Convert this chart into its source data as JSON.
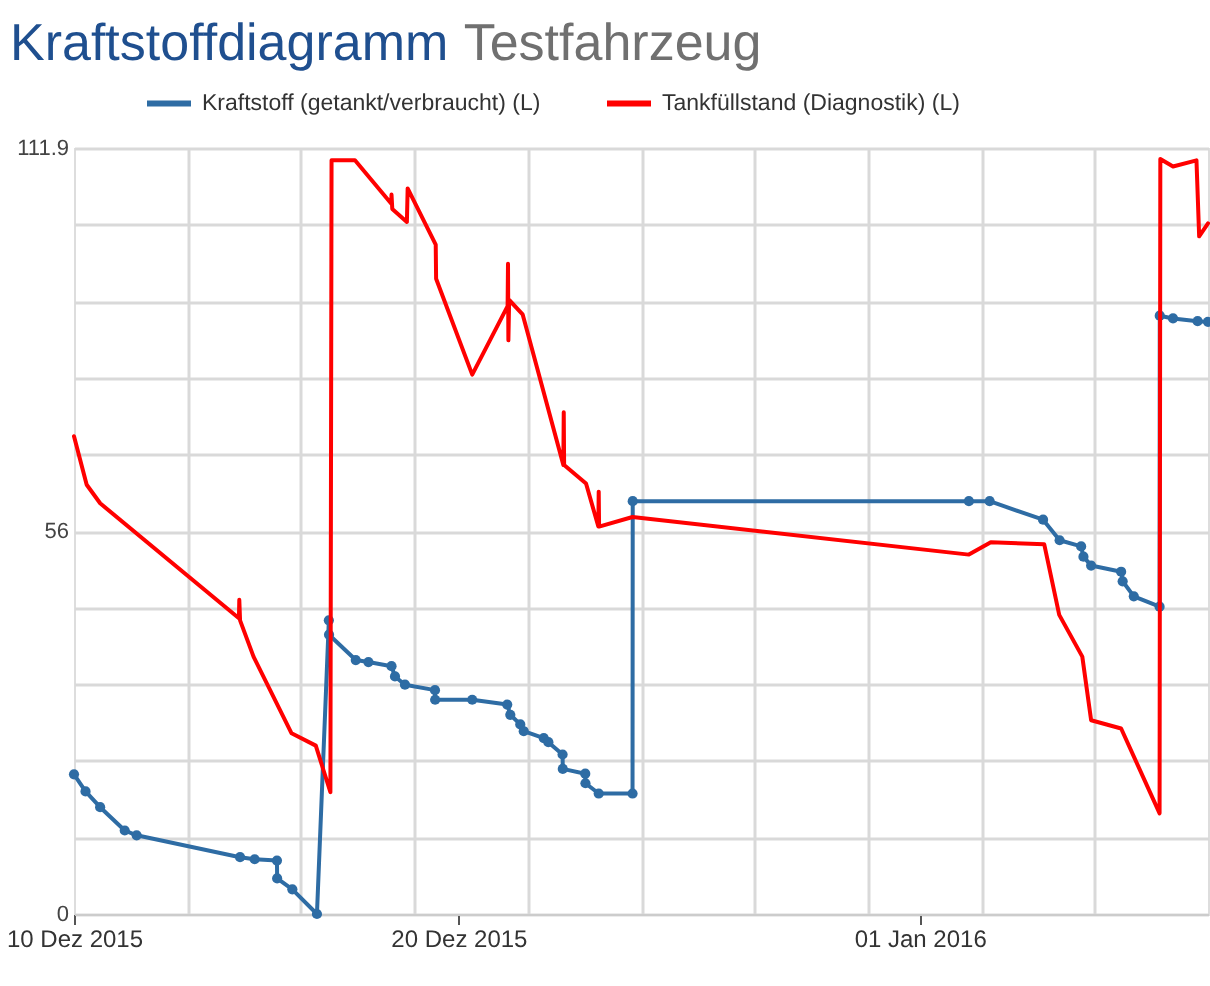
{
  "chart_data": {
    "type": "line",
    "title": "Kraftstoffdiagramm",
    "subtitle": "Testfahrzeug",
    "xlim": [
      "2015-12-10T00:00",
      "2016-01-08T12:00"
    ],
    "ylim": [
      0,
      111.9
    ],
    "xticks": [
      {
        "value": "2015-12-10",
        "label": "10 Dez 2015"
      },
      {
        "value": "2015-12-12T22:48",
        "label": null
      },
      {
        "value": "2015-12-15T21:36",
        "label": null
      },
      {
        "value": "2015-12-18T20:24",
        "label": null
      },
      {
        "value": "2015-12-20",
        "label": "20 Dez 2015"
      },
      {
        "value": "2015-12-21T19:12",
        "label": null
      },
      {
        "value": "2015-12-24T18:00",
        "label": null
      },
      {
        "value": "2015-12-27T16:48",
        "label": null
      },
      {
        "value": "2015-12-30T15:36",
        "label": null
      },
      {
        "value": "2016-01-01",
        "label": "01 Jan 2016"
      },
      {
        "value": "2016-01-02T14:24",
        "label": null
      },
      {
        "value": "2016-01-05T13:12",
        "label": null
      }
    ],
    "yticks": [
      0,
      {
        "value": 11.19,
        "label": null
      },
      {
        "value": 22.38,
        "label": null
      },
      {
        "value": 33.57,
        "label": null
      },
      {
        "value": 44.76,
        "label": null
      },
      {
        "value": 55.95,
        "label": "56"
      },
      {
        "value": 67.14,
        "label": null
      },
      {
        "value": 78.33,
        "label": null
      },
      {
        "value": 89.52,
        "label": null
      },
      {
        "value": 100.71,
        "label": null
      },
      111.9
    ],
    "grid": true,
    "legend": "top",
    "series": [
      {
        "name": "Kraftstoff (getankt/verbraucht) (L)",
        "color": "#2e6ca4",
        "marker": "circle",
        "x": [
          "2015-12-10T00:00",
          "2015-12-10T07:12",
          "2015-12-10T16:19",
          "2015-12-11T07:41",
          "2015-12-11T15:07",
          "2015-12-14T07:41",
          "2015-12-14T16:48",
          "2015-12-15T06:43",
          "2015-12-15T06:50",
          "2015-12-15T16:19",
          "2015-12-16T07:41",
          "2015-12-16T15:07",
          "2015-12-16T15:14",
          "2015-12-17T07:55",
          "2015-12-17T15:50",
          "2015-12-18T06:14",
          "2015-12-18T08:24",
          "2015-12-18T14:38",
          "2015-12-19T09:22",
          "2015-12-19T09:29",
          "2015-12-20T08:38",
          "2015-12-21T06:29",
          "2015-12-21T08:24",
          "2015-12-21T14:38",
          "2015-12-21T16:48",
          "2015-12-22T05:17",
          "2015-12-22T08:10",
          "2015-12-22T17:02",
          "2015-12-22T17:10",
          "2015-12-23T07:12",
          "2015-12-23T07:19",
          "2015-12-23T15:36",
          "2015-12-24T12:43",
          "2015-12-24T12:50",
          "2016-01-02T06:43",
          "2016-01-02T19:41",
          "2016-01-04T05:02",
          "2016-01-04T15:22",
          "2016-01-05T04:48",
          "2016-01-05T06:14",
          "2016-01-05T11:02",
          "2016-01-06T05:46",
          "2016-01-06T06:43",
          "2016-01-06T13:41",
          "2016-01-07T05:46",
          "2016-01-07T05:53",
          "2016-01-07T14:10",
          "2016-01-08T05:31",
          "2016-01-08T12:00"
        ],
        "values": [
          20.4,
          17.9,
          15.6,
          12.2,
          11.5,
          8.3,
          8.0,
          7.8,
          5.2,
          3.6,
          0,
          42.9,
          40.8,
          37.1,
          36.8,
          36.2,
          34.7,
          33.5,
          32.7,
          31.3,
          31.3,
          30.6,
          29.1,
          27.7,
          26.7,
          25.7,
          25.1,
          23.3,
          21.2,
          20.5,
          19.1,
          17.6,
          17.6,
          60.3,
          60.3,
          60.3,
          57.6,
          54.6,
          53.7,
          52.2,
          50.9,
          50.0,
          48.6,
          46.4,
          44.9,
          87.4,
          87.0,
          86.6,
          86.5
        ]
      },
      {
        "name": "Tankfüllstand (Diagnostik) (L)",
        "color": "#ff0000",
        "marker": "none",
        "x": [
          "2015-12-10T00:00",
          "2015-12-10T07:55",
          "2015-12-10T16:19",
          "2015-12-14T06:58",
          "2015-12-14T07:12",
          "2015-12-14T07:41",
          "2015-12-14T16:05",
          "2015-12-15T15:50",
          "2015-12-16T06:58",
          "2015-12-16T11:46",
          "2015-12-16T16:05",
          "2015-12-16T16:48",
          "2015-12-17T07:26",
          "2015-12-18T06:00",
          "2015-12-18T06:14",
          "2015-12-18T06:43",
          "2015-12-18T15:50",
          "2015-12-18T16:19",
          "2015-12-19T09:50",
          "2015-12-19T10:05",
          "2015-12-20T08:38",
          "2015-12-21T06:43",
          "2015-12-21T06:58",
          "2015-12-21T07:12",
          "2015-12-21T07:41",
          "2015-12-21T16:05",
          "2015-12-22T17:31",
          "2015-12-22T17:46",
          "2015-12-22T18:00",
          "2015-12-23T07:41",
          "2015-12-23T15:22",
          "2015-12-23T15:36",
          "2015-12-23T15:50",
          "2015-12-24T12:43",
          "2016-01-02T06:43",
          "2016-01-02T20:24",
          "2016-01-04T05:46",
          "2016-01-04T15:07",
          "2016-01-05T05:31",
          "2016-01-05T11:02",
          "2016-01-06T05:46",
          "2016-01-07T05:46",
          "2016-01-07T06:14",
          "2016-01-07T14:10",
          "2016-01-08T04:48",
          "2016-01-08T06:29",
          "2016-01-08T12:00"
        ],
        "values": [
          69.8,
          62.7,
          60.0,
          43.2,
          45.9,
          42.9,
          37.6,
          26.4,
          24.6,
          21.0,
          17.8,
          110.1,
          110.1,
          103.8,
          105.1,
          103.0,
          101.1,
          106.0,
          97.8,
          92.8,
          78.8,
          88.8,
          95.0,
          83.8,
          89.7,
          87.6,
          65.6,
          73.3,
          65.6,
          62.9,
          56.6,
          61.7,
          56.6,
          58.0,
          52.5,
          54.3,
          54.0,
          43.7,
          37.6,
          28.3,
          27.1,
          14.7,
          110.3,
          109.2,
          110.1,
          99.0,
          100.9
        ]
      }
    ]
  }
}
